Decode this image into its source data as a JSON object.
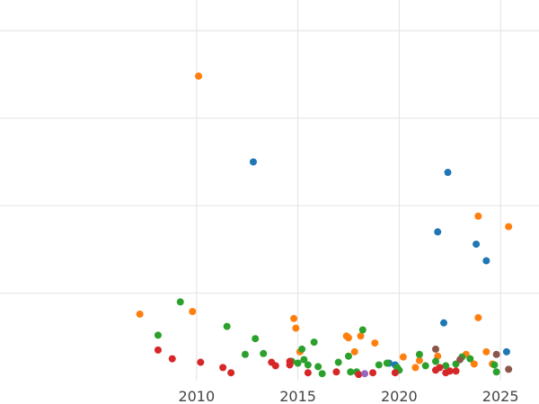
{
  "chart_data": {
    "type": "scatter",
    "title": "",
    "xlabel": "",
    "ylabel": "",
    "xlim": [
      2000.3,
      2026.9
    ],
    "ylim": [
      0,
      4.35
    ],
    "xticks": [
      2010,
      2015,
      2020,
      2025
    ],
    "xtick_labels": [
      "2010",
      "2015",
      "2020",
      "2025"
    ],
    "ygrid": [
      1,
      2,
      3,
      4
    ],
    "grid": true,
    "legend": "none",
    "series": [
      {
        "color": "#1f77b4",
        "points": [
          {
            "x": 2012.8,
            "y": 2.5
          },
          {
            "x": 2022.4,
            "y": 2.38
          },
          {
            "x": 2021.9,
            "y": 1.7
          },
          {
            "x": 2023.8,
            "y": 1.56
          },
          {
            "x": 2024.3,
            "y": 1.37
          },
          {
            "x": 2022.2,
            "y": 0.66
          },
          {
            "x": 2025.3,
            "y": 0.33
          },
          {
            "x": 2019.5,
            "y": 0.2
          },
          {
            "x": 2019.8,
            "y": 0.18
          }
        ]
      },
      {
        "color": "#ff7f0e",
        "points": [
          {
            "x": 2010.1,
            "y": 3.48
          },
          {
            "x": 2023.9,
            "y": 1.88
          },
          {
            "x": 2025.4,
            "y": 1.76
          },
          {
            "x": 2007.2,
            "y": 0.76
          },
          {
            "x": 2009.8,
            "y": 0.79
          },
          {
            "x": 2014.8,
            "y": 0.71
          },
          {
            "x": 2014.9,
            "y": 0.6
          },
          {
            "x": 2023.9,
            "y": 0.72
          },
          {
            "x": 2017.4,
            "y": 0.51
          },
          {
            "x": 2017.5,
            "y": 0.49
          },
          {
            "x": 2018.1,
            "y": 0.51
          },
          {
            "x": 2018.8,
            "y": 0.43
          },
          {
            "x": 2015.1,
            "y": 0.33
          },
          {
            "x": 2017.8,
            "y": 0.33
          },
          {
            "x": 2020.2,
            "y": 0.27
          },
          {
            "x": 2021.0,
            "y": 0.23
          },
          {
            "x": 2021.9,
            "y": 0.28
          },
          {
            "x": 2023.3,
            "y": 0.3
          },
          {
            "x": 2024.3,
            "y": 0.33
          },
          {
            "x": 2020.8,
            "y": 0.15
          },
          {
            "x": 2023.7,
            "y": 0.19
          },
          {
            "x": 2024.6,
            "y": 0.19
          }
        ]
      },
      {
        "color": "#2ca02c",
        "points": [
          {
            "x": 2009.2,
            "y": 0.9
          },
          {
            "x": 2008.1,
            "y": 0.52
          },
          {
            "x": 2011.5,
            "y": 0.62
          },
          {
            "x": 2012.4,
            "y": 0.3
          },
          {
            "x": 2012.9,
            "y": 0.48
          },
          {
            "x": 2013.3,
            "y": 0.31
          },
          {
            "x": 2014.7,
            "y": 0.22
          },
          {
            "x": 2015.0,
            "y": 0.2
          },
          {
            "x": 2015.2,
            "y": 0.36
          },
          {
            "x": 2015.3,
            "y": 0.24
          },
          {
            "x": 2015.5,
            "y": 0.18
          },
          {
            "x": 2015.8,
            "y": 0.44
          },
          {
            "x": 2016.0,
            "y": 0.16
          },
          {
            "x": 2016.2,
            "y": 0.08
          },
          {
            "x": 2017.0,
            "y": 0.21
          },
          {
            "x": 2017.5,
            "y": 0.28
          },
          {
            "x": 2017.6,
            "y": 0.1
          },
          {
            "x": 2017.9,
            "y": 0.1
          },
          {
            "x": 2018.2,
            "y": 0.58
          },
          {
            "x": 2019.0,
            "y": 0.18
          },
          {
            "x": 2019.4,
            "y": 0.2
          },
          {
            "x": 2019.9,
            "y": 0.15
          },
          {
            "x": 2020.0,
            "y": 0.12
          },
          {
            "x": 2021.0,
            "y": 0.3
          },
          {
            "x": 2021.3,
            "y": 0.17
          },
          {
            "x": 2021.8,
            "y": 0.22
          },
          {
            "x": 2022.3,
            "y": 0.17
          },
          {
            "x": 2022.8,
            "y": 0.19
          },
          {
            "x": 2023.1,
            "y": 0.27
          },
          {
            "x": 2023.5,
            "y": 0.25
          },
          {
            "x": 2024.7,
            "y": 0.18
          },
          {
            "x": 2024.8,
            "y": 0.1
          }
        ]
      },
      {
        "color": "#d62728",
        "points": [
          {
            "x": 2008.1,
            "y": 0.35
          },
          {
            "x": 2008.8,
            "y": 0.25
          },
          {
            "x": 2010.2,
            "y": 0.21
          },
          {
            "x": 2011.3,
            "y": 0.15
          },
          {
            "x": 2011.7,
            "y": 0.09
          },
          {
            "x": 2013.7,
            "y": 0.21
          },
          {
            "x": 2013.9,
            "y": 0.17
          },
          {
            "x": 2014.6,
            "y": 0.22
          },
          {
            "x": 2014.6,
            "y": 0.18
          },
          {
            "x": 2015.5,
            "y": 0.09
          },
          {
            "x": 2016.9,
            "y": 0.1
          },
          {
            "x": 2018.0,
            "y": 0.07
          },
          {
            "x": 2018.7,
            "y": 0.09
          },
          {
            "x": 2019.8,
            "y": 0.09
          },
          {
            "x": 2021.8,
            "y": 0.12
          },
          {
            "x": 2022.0,
            "y": 0.15
          },
          {
            "x": 2022.3,
            "y": 0.09
          },
          {
            "x": 2022.5,
            "y": 0.11
          },
          {
            "x": 2022.8,
            "y": 0.11
          }
        ]
      },
      {
        "color": "#9467bd",
        "points": [
          {
            "x": 2018.3,
            "y": 0.08
          }
        ]
      },
      {
        "color": "#8c564b",
        "points": [
          {
            "x": 2021.8,
            "y": 0.36
          },
          {
            "x": 2023.0,
            "y": 0.24
          },
          {
            "x": 2024.8,
            "y": 0.3
          },
          {
            "x": 2025.4,
            "y": 0.13
          }
        ]
      }
    ]
  }
}
